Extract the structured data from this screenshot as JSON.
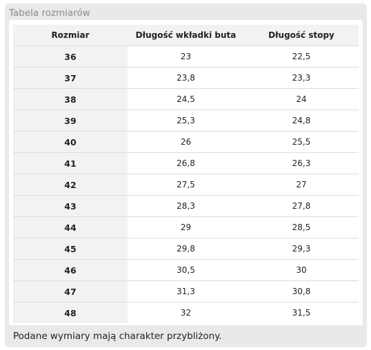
{
  "panel": {
    "title": "Tabela rozmiarów",
    "footnote": "Podane wymiary mają charakter przybliżony."
  },
  "table": {
    "headers": [
      "Rozmiar",
      "Długość wkładki buta",
      "Długość stopy"
    ],
    "rows": [
      [
        "36",
        "23",
        "22,5"
      ],
      [
        "37",
        "23,8",
        "23,3"
      ],
      [
        "38",
        "24,5",
        "24"
      ],
      [
        "39",
        "25,3",
        "24,8"
      ],
      [
        "40",
        "26",
        "25,5"
      ],
      [
        "41",
        "26,8",
        "26,3"
      ],
      [
        "42",
        "27,5",
        "27"
      ],
      [
        "43",
        "28,3",
        "27,8"
      ],
      [
        "44",
        "29",
        "28,5"
      ],
      [
        "45",
        "29,8",
        "29,3"
      ],
      [
        "46",
        "30,5",
        "30"
      ],
      [
        "47",
        "31,3",
        "30,8"
      ],
      [
        "48",
        "32",
        "31,5"
      ]
    ]
  }
}
